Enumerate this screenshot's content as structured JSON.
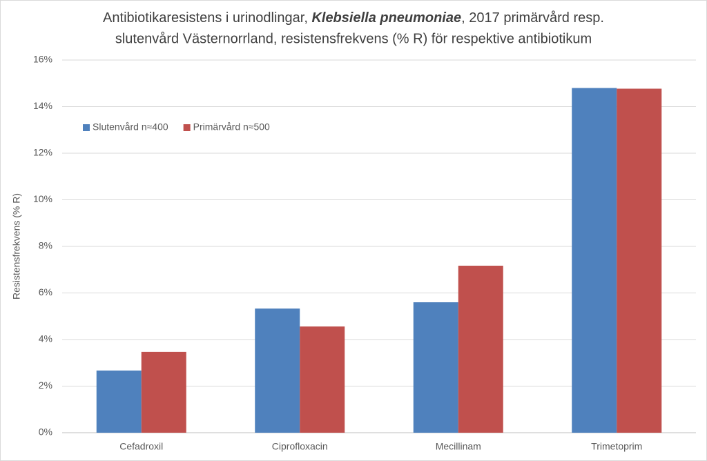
{
  "chart_data": {
    "type": "bar",
    "title": [
      "Antibiotikaresistens i urinodlingar, ",
      "Klebsiella pneumoniae",
      ", 2017 primärvård resp.",
      "slutenvård Västernorrland, resistensfrekvens (% R) för respektive antibiotikum"
    ],
    "y_label": "Resistensfrekvens (% R)",
    "categories": [
      "Cefadroxil",
      "Ciprofloxacin",
      "Mecillinam",
      "Trimetoprim"
    ],
    "series": [
      {
        "name": "Slutenvård n≈400",
        "color": "#4f81bd",
        "values": [
          2.67,
          5.33,
          5.6,
          14.8
        ]
      },
      {
        "name": "Primärvård n≈500",
        "color": "#c0504d",
        "values": [
          3.47,
          4.56,
          7.17,
          14.77
        ]
      }
    ],
    "ylim": [
      0,
      16
    ],
    "yticks": [
      {
        "value": 0,
        "label": "0%"
      },
      {
        "value": 2,
        "label": "2%"
      },
      {
        "value": 4,
        "label": "4%"
      },
      {
        "value": 6,
        "label": "6%"
      },
      {
        "value": 8,
        "label": "8%"
      },
      {
        "value": 10,
        "label": "10%"
      },
      {
        "value": 12,
        "label": "12%"
      },
      {
        "value": 14,
        "label": "14%"
      },
      {
        "value": 16,
        "label": "16%"
      }
    ],
    "grid": true,
    "legend": "top-left"
  }
}
